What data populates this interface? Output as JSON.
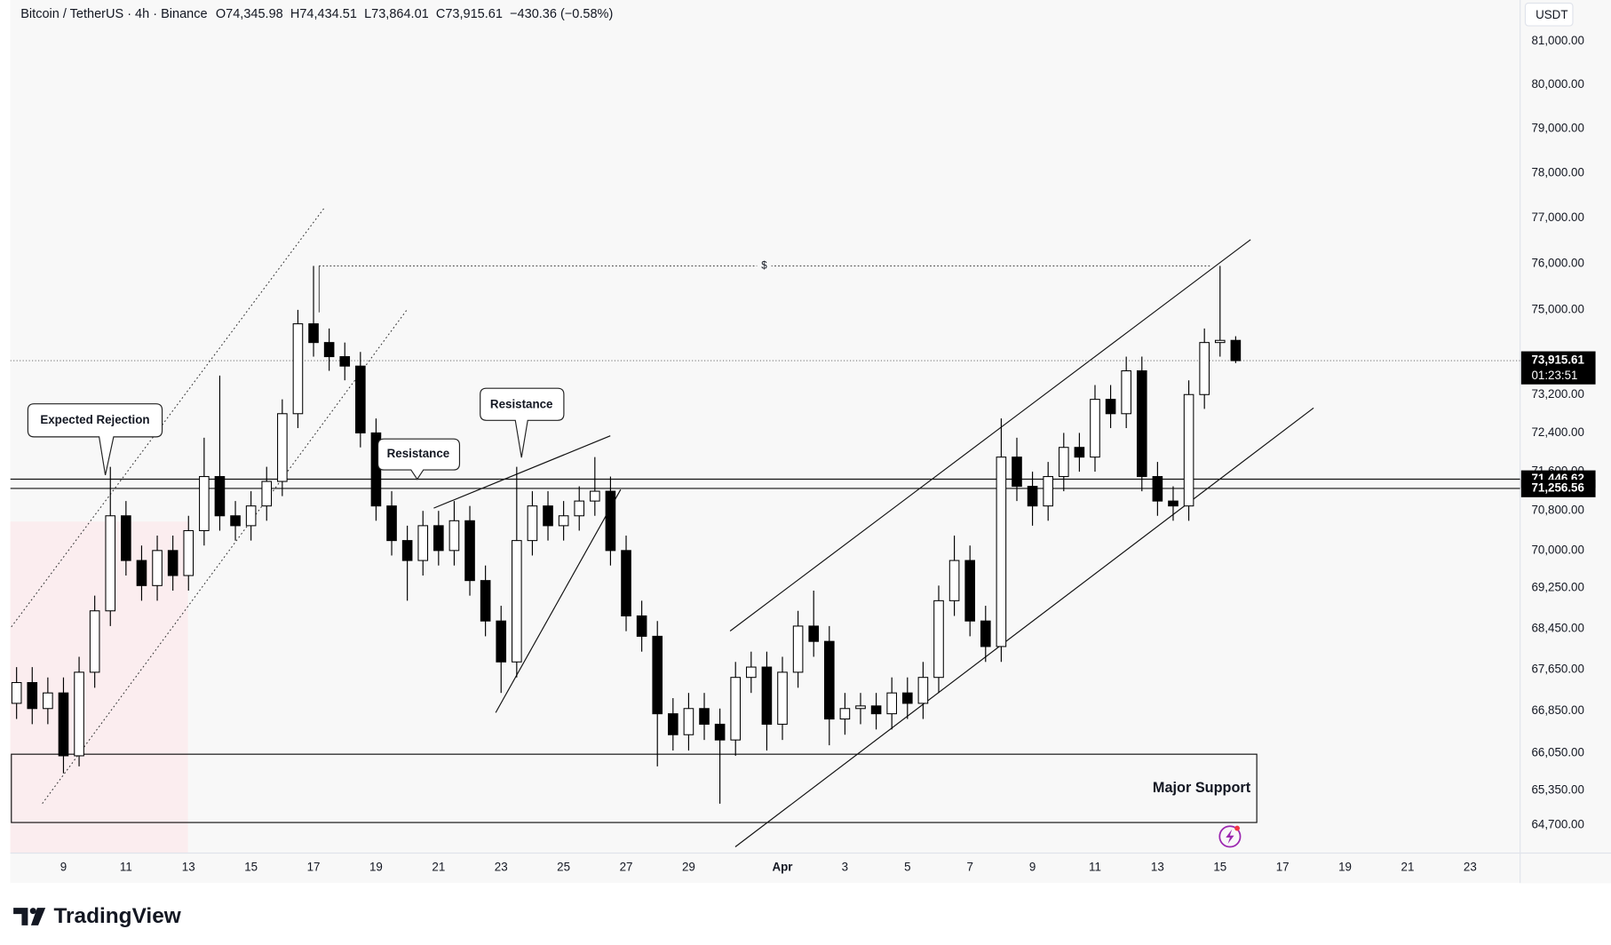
{
  "chart_data": {
    "type": "candlestick",
    "title": "Bitcoin / TetherUS · 4h · Binance",
    "ohlc_text": [
      "O74,345.98",
      "H74,434.51",
      "L73,864.01",
      "C73,915.61",
      "−430.36 (−0.58%)"
    ],
    "currency": "USDT",
    "log_scale": true,
    "grid": false,
    "up_color": "#ffffff",
    "down_color": "#000000",
    "xlim": [
      7.3,
      55.6
    ],
    "ylim": [
      64185,
      81965
    ],
    "xticks": [
      9,
      11,
      13,
      15,
      17,
      19,
      21,
      23,
      25,
      27,
      29,
      {
        "value": 32,
        "label": "Apr"
      },
      {
        "value": 34,
        "label": "3"
      },
      {
        "value": 36,
        "label": "5"
      },
      {
        "value": 38,
        "label": "7"
      },
      {
        "value": 40,
        "label": "9"
      },
      {
        "value": 42,
        "label": "11"
      },
      {
        "value": 44,
        "label": "13"
      },
      {
        "value": 46,
        "label": "15"
      },
      {
        "value": 48,
        "label": "17"
      },
      {
        "value": 50,
        "label": "19"
      },
      {
        "value": 52,
        "label": "21"
      },
      {
        "value": 54,
        "label": "23"
      }
    ],
    "yticks": [
      {
        "value": 81000,
        "label": "81,000.00"
      },
      {
        "value": 80000,
        "label": "80,000.00"
      },
      {
        "value": 79000,
        "label": "79,000.00"
      },
      {
        "value": 78000,
        "label": "78,000.00"
      },
      {
        "value": 77000,
        "label": "77,000.00"
      },
      {
        "value": 76000,
        "label": "76,000.00"
      },
      {
        "value": 75000,
        "label": "75,000.00"
      },
      {
        "value": 73200,
        "label": "73,200.00"
      },
      {
        "value": 72400,
        "label": "72,400.00"
      },
      {
        "value": 71600,
        "label": "71,600.00"
      },
      {
        "value": 70800,
        "label": "70,800.00"
      },
      {
        "value": 70000,
        "label": "70,000.00"
      },
      {
        "value": 69250,
        "label": "69,250.00"
      },
      {
        "value": 68450,
        "label": "68,450.00"
      },
      {
        "value": 67650,
        "label": "67,650.00"
      },
      {
        "value": 66850,
        "label": "66,850.00"
      },
      {
        "value": 66050,
        "label": "66,050.00"
      },
      {
        "value": 65350,
        "label": "65,350.00"
      },
      {
        "value": 64700,
        "label": "64,700.00"
      }
    ],
    "x": [
      7.5,
      8,
      8.5,
      9,
      9.5,
      10,
      10.5,
      11,
      11.5,
      12,
      12.5,
      13,
      13.5,
      14,
      14.5,
      15,
      15.5,
      16,
      16.5,
      17,
      17.5,
      18,
      18.5,
      19,
      19.5,
      20,
      20.5,
      21,
      21.5,
      22,
      22.5,
      23,
      23.5,
      24,
      24.5,
      25,
      25.5,
      26,
      26.5,
      27,
      27.5,
      28,
      28.5,
      29,
      29.5,
      30,
      30.5,
      31,
      31.5,
      32,
      32.5,
      33,
      33.5,
      34,
      34.5,
      35,
      35.5,
      36,
      36.5,
      37,
      37.5,
      38,
      38.5,
      39,
      39.5,
      40,
      40.5,
      41,
      41.5,
      42,
      42.5,
      43,
      43.5,
      44,
      44.5,
      45,
      45.5,
      46,
      46.5
    ],
    "open": [
      67000,
      67400,
      66900,
      67200,
      66000,
      67600,
      68800,
      70700,
      69800,
      69300,
      70000,
      69500,
      70400,
      71500,
      70700,
      70500,
      70900,
      71400,
      72800,
      74700,
      74300,
      74000,
      73800,
      72400,
      70900,
      70200,
      69800,
      70500,
      70000,
      70600,
      69400,
      68600,
      67800,
      70200,
      70900,
      70500,
      70700,
      71000,
      71200,
      70000,
      68700,
      68300,
      66800,
      66400,
      66900,
      66600,
      66300,
      67500,
      67700,
      66600,
      67600,
      68500,
      68200,
      66700,
      66900,
      66950,
      66800,
      67200,
      67000,
      67500,
      69000,
      69800,
      68600,
      68100,
      71900,
      71300,
      70900,
      71500,
      72100,
      71900,
      73100,
      72800,
      73700,
      71500,
      71000,
      70900,
      73200,
      74300,
      74345.98
    ],
    "high": [
      67700,
      67700,
      67500,
      67500,
      67900,
      69100,
      71700,
      71000,
      70100,
      70300,
      70300,
      70700,
      72300,
      73600,
      71000,
      71200,
      71700,
      73100,
      75000,
      75950,
      74600,
      74300,
      74100,
      72700,
      71200,
      70500,
      70800,
      70800,
      71000,
      70900,
      69700,
      68900,
      71700,
      71200,
      71200,
      71000,
      71300,
      71900,
      71500,
      70300,
      69000,
      68600,
      67100,
      67200,
      67200,
      66900,
      67800,
      68000,
      68000,
      67900,
      68800,
      69200,
      68500,
      67200,
      67200,
      67200,
      67500,
      67500,
      67800,
      69300,
      70300,
      70100,
      68900,
      72700,
      72300,
      71600,
      71800,
      72400,
      72400,
      73400,
      73400,
      74000,
      74000,
      71800,
      71300,
      73500,
      74600,
      75950,
      74434.51
    ],
    "low": [
      66700,
      66600,
      66600,
      65670,
      65800,
      67300,
      68500,
      69500,
      69000,
      69000,
      69200,
      69200,
      70100,
      70400,
      70200,
      70200,
      70600,
      71100,
      72500,
      74000,
      73700,
      73500,
      72100,
      70600,
      69900,
      69000,
      69500,
      69700,
      69700,
      69100,
      68300,
      67200,
      67500,
      69900,
      70200,
      70200,
      70400,
      70700,
      69700,
      68400,
      68000,
      65800,
      66100,
      66100,
      66300,
      65100,
      66000,
      67200,
      66100,
      66300,
      67300,
      67900,
      66200,
      66400,
      66600,
      66500,
      66500,
      66700,
      66700,
      67200,
      68700,
      68300,
      67800,
      67800,
      71000,
      70500,
      70600,
      71200,
      71600,
      71600,
      72500,
      72500,
      71200,
      70700,
      70600,
      70600,
      72900,
      74000,
      73864.01
    ],
    "close": [
      67400,
      66900,
      67200,
      66000,
      67600,
      68800,
      70700,
      69800,
      69300,
      70000,
      69500,
      70400,
      71500,
      70700,
      70500,
      70900,
      71400,
      72800,
      74700,
      74300,
      74000,
      73800,
      72400,
      70900,
      70200,
      69800,
      70500,
      70000,
      70600,
      69400,
      68600,
      67800,
      70200,
      70900,
      70500,
      70700,
      71000,
      71200,
      70000,
      68700,
      68300,
      66800,
      66400,
      66900,
      66600,
      66300,
      67500,
      67700,
      66600,
      67600,
      68500,
      68200,
      66700,
      66900,
      66950,
      66800,
      67200,
      67000,
      67500,
      69000,
      69800,
      68600,
      68100,
      71900,
      71300,
      70900,
      71500,
      72100,
      71900,
      73100,
      72800,
      73700,
      71500,
      71000,
      70900,
      73200,
      74300,
      74345.98,
      73915.61
    ],
    "last_price_label": "73,915.61",
    "countdown": "01:23:51",
    "levels": [
      71446.62,
      71256.56
    ],
    "level_labels": [
      "71,446.62",
      "71,256.56"
    ],
    "swing_high": 75950,
    "swing_high_label": "$",
    "support_zone": [
      64750,
      66030
    ],
    "annotations": [
      "Expected Rejection",
      "Resistance",
      "Resistance",
      "Major Support"
    ],
    "brand": "TradingView"
  }
}
